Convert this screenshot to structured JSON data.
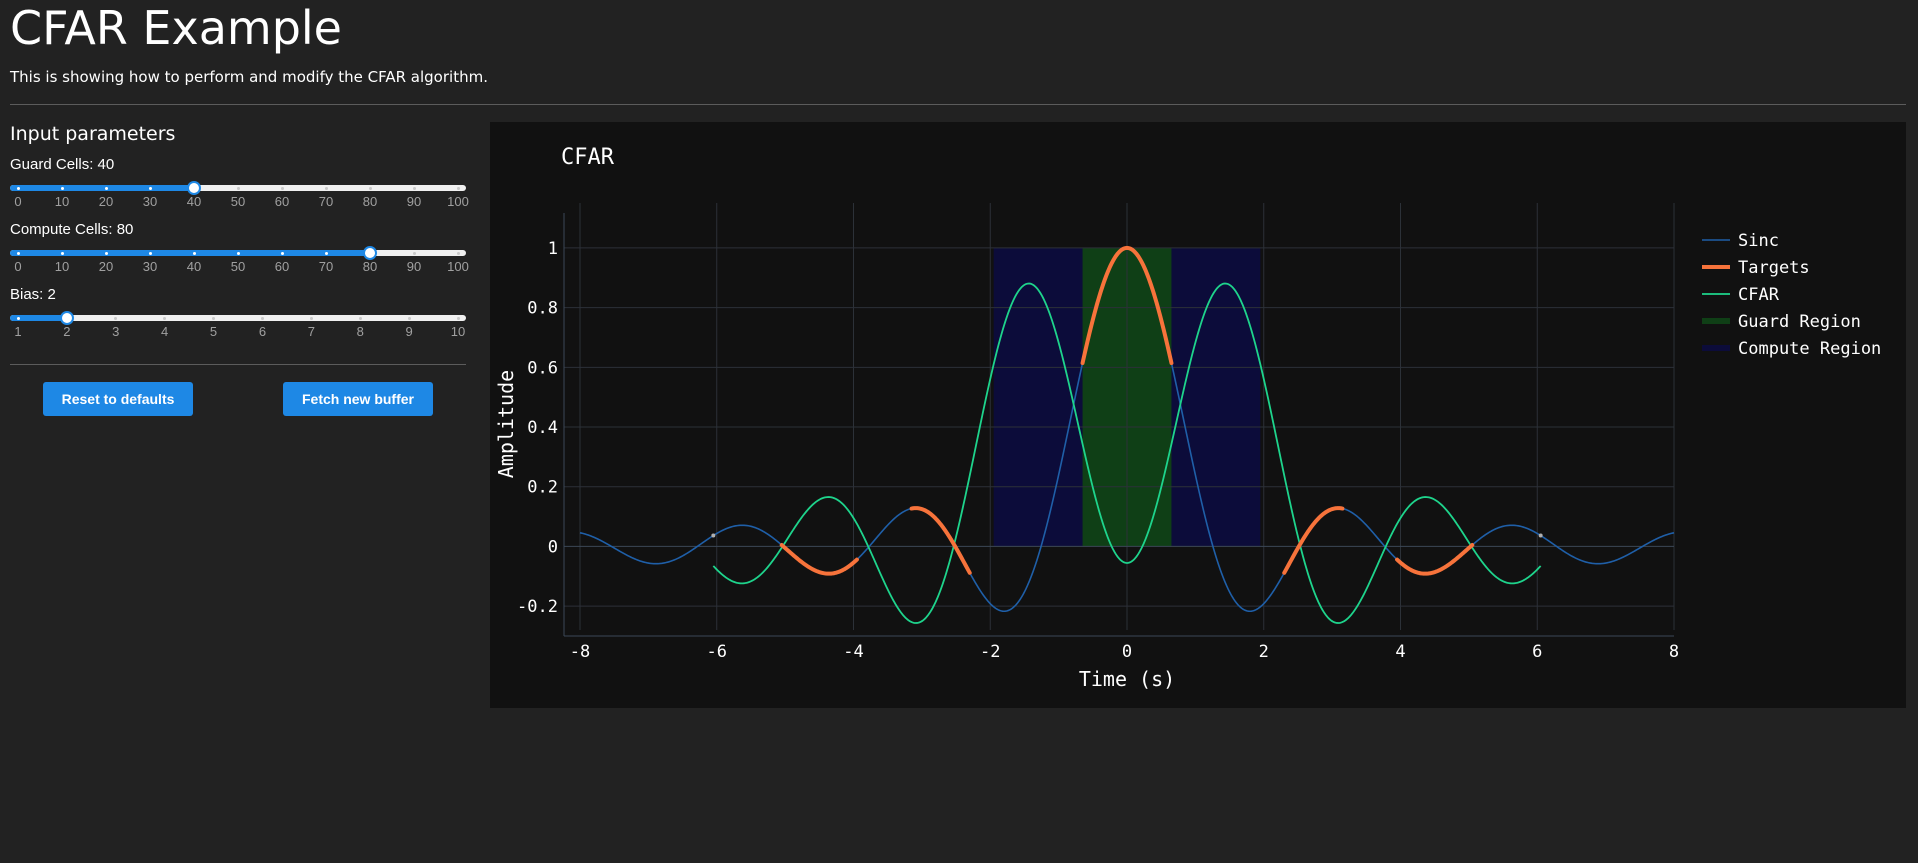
{
  "page": {
    "title": "CFAR Example",
    "subtitle": "This is showing how to perform and modify the CFAR algorithm."
  },
  "controls": {
    "heading": "Input parameters",
    "sliders": [
      {
        "label": "Guard Cells: 40",
        "value": 40,
        "min": 0,
        "max": 100,
        "marks": [
          "0",
          "10",
          "20",
          "30",
          "40",
          "50",
          "60",
          "70",
          "80",
          "90",
          "100"
        ]
      },
      {
        "label": "Compute Cells: 80",
        "value": 80,
        "min": 0,
        "max": 100,
        "marks": [
          "0",
          "10",
          "20",
          "30",
          "40",
          "50",
          "60",
          "70",
          "80",
          "90",
          "100"
        ]
      },
      {
        "label": "Bias: 2",
        "value": 2,
        "min": 1,
        "max": 10,
        "marks": [
          "1",
          "2",
          "3",
          "4",
          "5",
          "6",
          "7",
          "8",
          "9",
          "10"
        ]
      }
    ],
    "buttons": {
      "reset": "Reset to defaults",
      "fetch": "Fetch new buffer"
    }
  },
  "colors": {
    "sinc": "#1f5fa8",
    "targets": "#f7733b",
    "cfar": "#1ed48c",
    "guard_region": "#0f3f16",
    "compute_region": "#0c0c3a",
    "accent": "#1e88e5"
  },
  "chart_data": {
    "type": "line",
    "title": "CFAR",
    "xlabel": "Time (s)",
    "ylabel": "Amplitude",
    "xlim": [
      -8,
      8
    ],
    "ylim": [
      -0.28,
      1.05
    ],
    "xticks": [
      "-8",
      "-6",
      "-4",
      "-2",
      "0",
      "2",
      "4",
      "6",
      "8"
    ],
    "yticks": [
      "-0.2",
      "0",
      "0.2",
      "0.4",
      "0.6",
      "0.8",
      "1"
    ],
    "grid": true,
    "legend_position": "right",
    "series": [
      {
        "name": "Sinc",
        "x_range": [
          -8,
          8
        ],
        "formula": "sin(2.5x)/(2.5x)",
        "peak": 1,
        "first_trough": -0.217
      },
      {
        "name": "Targets",
        "segments": [
          [
            -5.05,
            -3.95
          ],
          [
            -3.15,
            -2.3
          ],
          [
            -0.65,
            0.65
          ],
          [
            2.3,
            3.15
          ],
          [
            3.95,
            5.05
          ]
        ],
        "peaks": [
          {
            "x": -4.5,
            "y": 0.07
          },
          {
            "x": -2.5,
            "y": 0.13
          },
          {
            "x": 0,
            "y": 1
          },
          {
            "x": 2.5,
            "y": 0.13
          },
          {
            "x": 4.5,
            "y": 0.07
          }
        ]
      },
      {
        "name": "CFAR",
        "x_range": [
          -6.05,
          6.05
        ],
        "peaks": [
          {
            "x": -1.3,
            "y": 0.86
          },
          {
            "x": 1.3,
            "y": 0.86
          }
        ],
        "center_value": -0.1
      },
      {
        "name": "Guard Region",
        "x_range": [
          -0.65,
          0.65
        ],
        "y_range": [
          0,
          1
        ]
      },
      {
        "name": "Compute Region",
        "x_range": [
          -1.95,
          1.95
        ],
        "y_range": [
          0,
          1
        ]
      }
    ]
  }
}
